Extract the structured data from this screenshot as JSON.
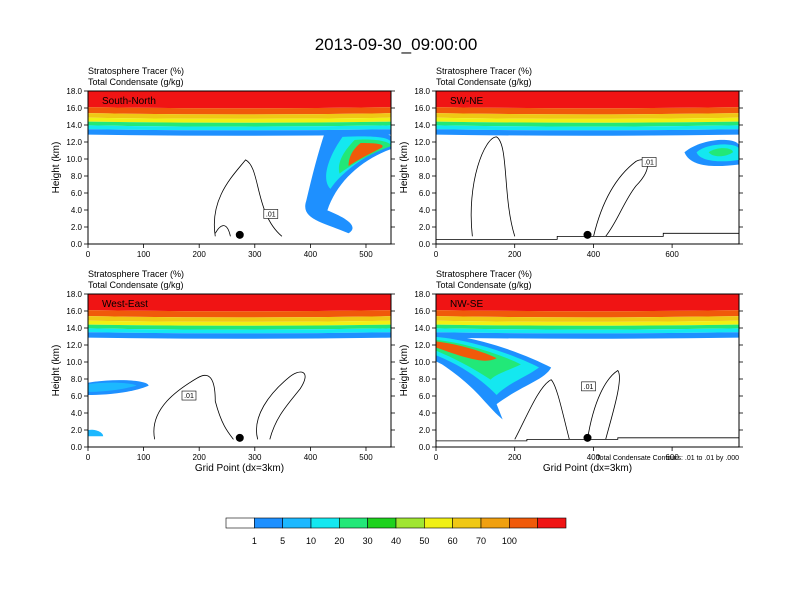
{
  "figure": {
    "title": "2013-09-30_09:00:00",
    "field1_label": "Stratosphere Tracer   (%)",
    "field2_label": "Total Condensate   (g/kg)",
    "contour_note": "Total Condensate Contours: .01 to .01 by .000",
    "contour_label": ".01"
  },
  "colorbar": {
    "colors": [
      "#ffffff",
      "#1e90ff",
      "#1cb8ff",
      "#14e8f0",
      "#22e878",
      "#1ed21e",
      "#a0e632",
      "#f0f014",
      "#f0c814",
      "#f0a010",
      "#f05a0a",
      "#f01414"
    ],
    "labels": [
      "1",
      "5",
      "10",
      "20",
      "30",
      "40",
      "50",
      "60",
      "70",
      "100"
    ]
  },
  "chart_data": [
    {
      "type": "heatmap",
      "panel": "South-North",
      "ylabel": "Height (km)",
      "xlabel": "",
      "ylim": [
        0,
        18
      ],
      "yticks": [
        "0.0",
        "2.0",
        "4.0",
        "6.0",
        "8.0",
        "10.0",
        "12.0",
        "14.0",
        "16.0",
        "18.0"
      ],
      "xlim": [
        0,
        545
      ],
      "xticks": [
        0,
        100,
        200,
        300,
        400,
        500
      ],
      "marker_x": 273
    },
    {
      "type": "heatmap",
      "panel": "SW-NE",
      "ylabel": "Height (km)",
      "xlabel": "",
      "ylim": [
        0,
        18
      ],
      "yticks": [
        "0.0",
        "2.0",
        "4.0",
        "6.0",
        "8.0",
        "10.0",
        "12.0",
        "14.0",
        "16.0",
        "18.0"
      ],
      "xlim": [
        0,
        770
      ],
      "xticks": [
        0,
        200,
        400,
        600
      ],
      "marker_x": 385
    },
    {
      "type": "heatmap",
      "panel": "West-East",
      "ylabel": "Height (km)",
      "xlabel": "Grid Point (dx=3km)",
      "ylim": [
        0,
        18
      ],
      "yticks": [
        "0.0",
        "2.0",
        "4.0",
        "6.0",
        "8.0",
        "10.0",
        "12.0",
        "14.0",
        "16.0",
        "18.0"
      ],
      "xlim": [
        0,
        545
      ],
      "xticks": [
        0,
        100,
        200,
        300,
        400,
        500
      ],
      "marker_x": 273
    },
    {
      "type": "heatmap",
      "panel": "NW-SE",
      "ylabel": "Height (km)",
      "xlabel": "Grid Point (dx=3km)",
      "ylim": [
        0,
        18
      ],
      "yticks": [
        "0.0",
        "2.0",
        "4.0",
        "6.0",
        "8.0",
        "10.0",
        "12.0",
        "14.0",
        "16.0",
        "18.0"
      ],
      "xlim": [
        0,
        770
      ],
      "xticks": [
        0,
        200,
        400,
        600
      ],
      "marker_x": 385
    }
  ]
}
